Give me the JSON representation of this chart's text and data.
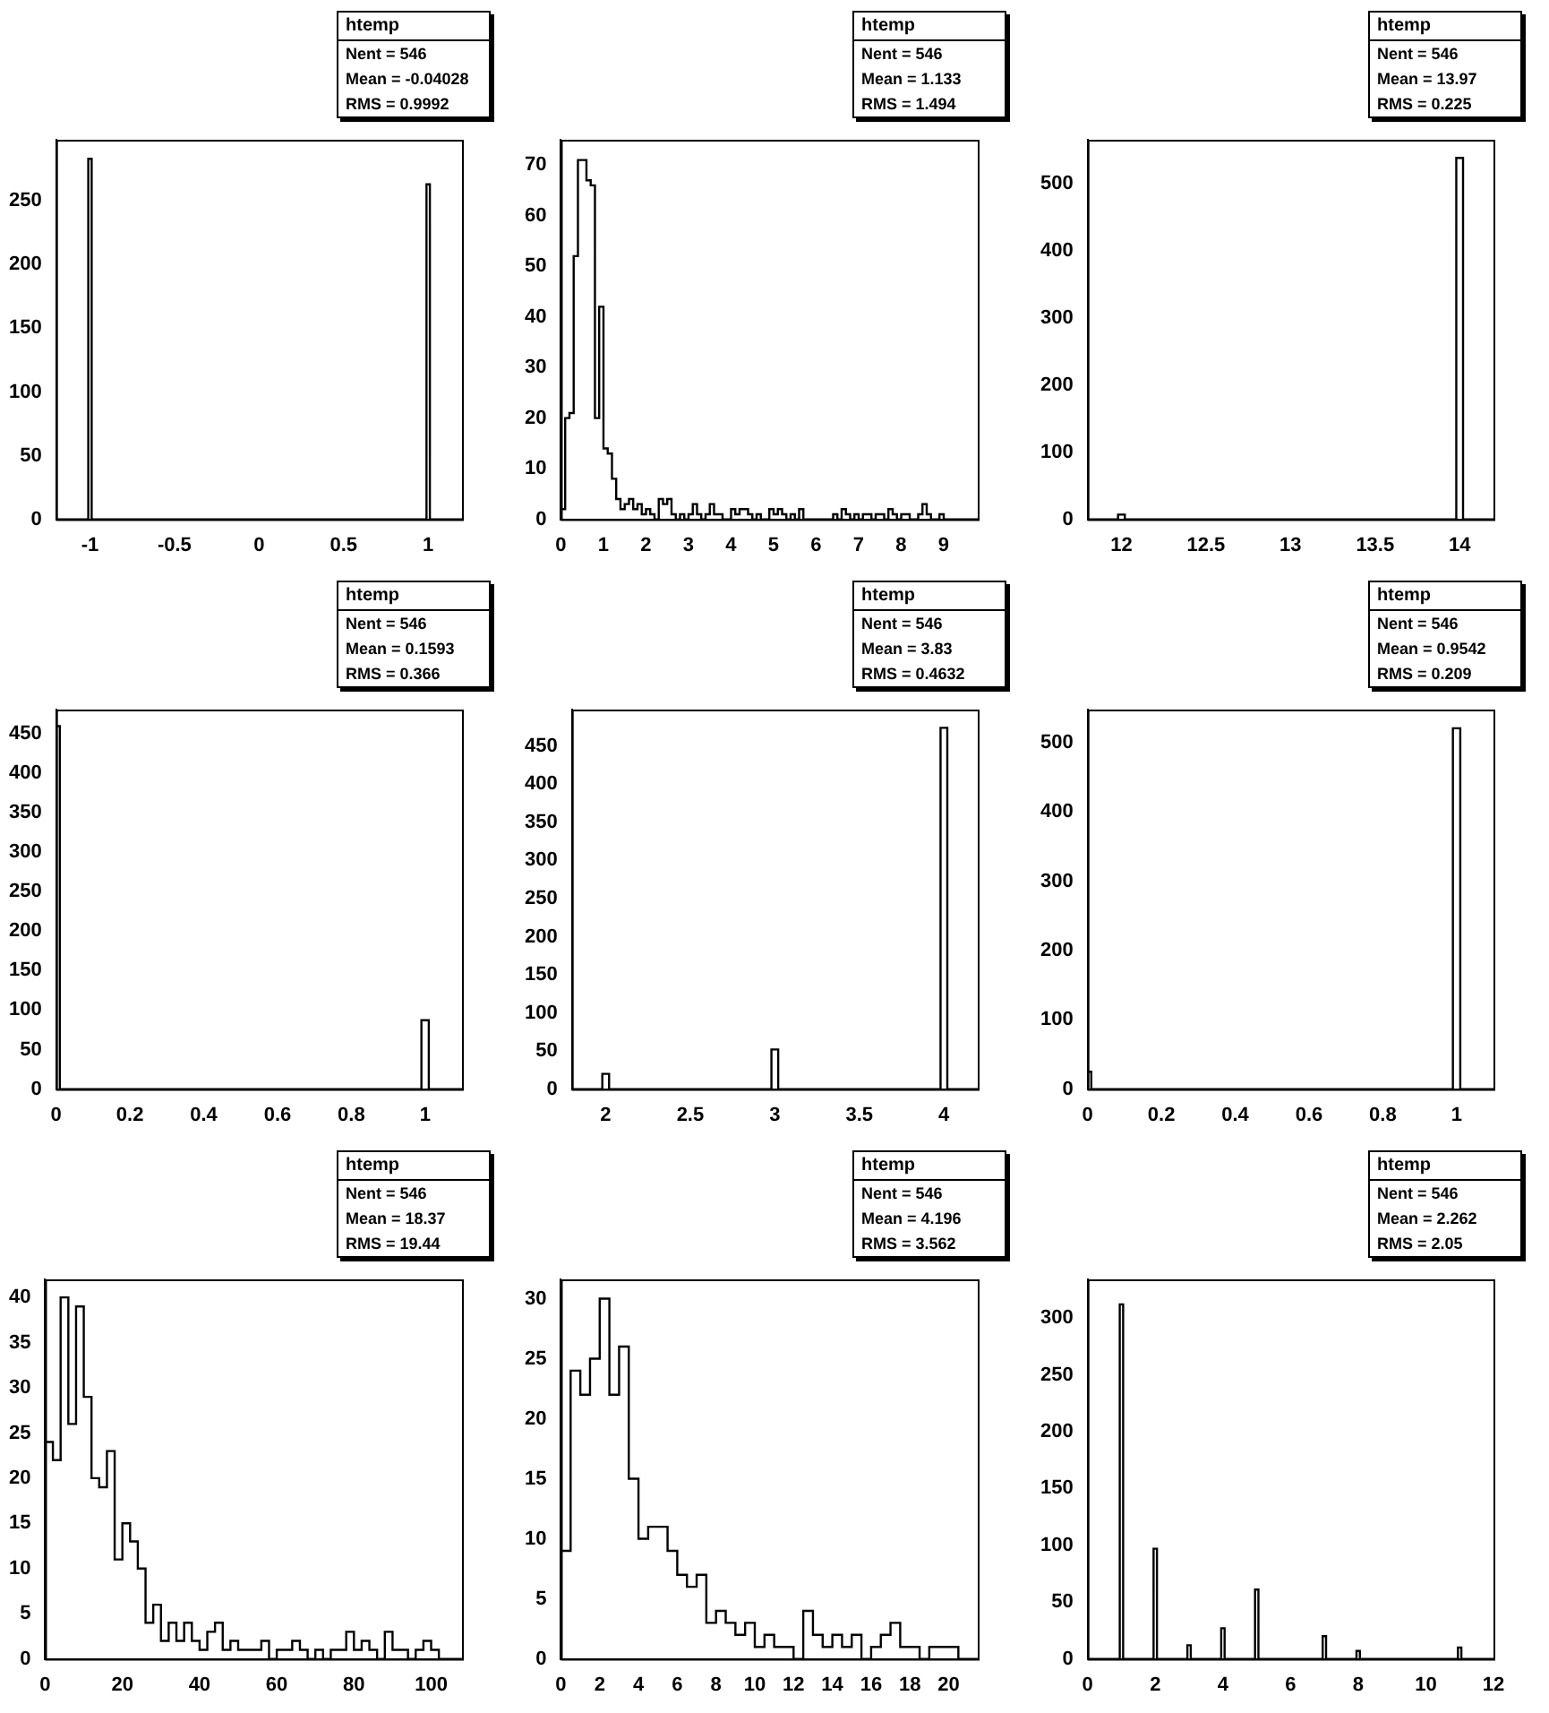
{
  "chart_data": [
    {
      "type": "histogram",
      "color": "#000000",
      "bins": [
        -1.2,
        -1.01,
        -0.99,
        0.99,
        1.01,
        1.2
      ],
      "values": [
        0,
        283,
        0,
        263,
        0
      ],
      "xlim": [
        -1.2,
        1.2
      ],
      "ylim": [
        0,
        298
      ],
      "xticks": [
        -1,
        -0.5,
        0,
        0.5,
        1
      ],
      "yticks": [
        0,
        50,
        100,
        150,
        200,
        250
      ],
      "annotations": [
        "htemp",
        "Nent = 546",
        "Mean = -0.04028",
        "RMS = 0.9992"
      ]
    },
    {
      "type": "histogram",
      "color": "#000000",
      "bins": [
        0,
        0.1,
        0.2,
        0.3,
        0.4,
        0.5,
        0.6,
        0.7,
        0.8,
        0.9,
        1,
        1.1,
        1.2,
        1.3,
        1.4,
        1.5,
        1.6,
        1.7,
        1.8,
        1.9,
        2,
        2.1,
        2.2,
        2.3,
        2.4,
        2.5,
        2.6,
        2.7,
        2.8,
        2.9,
        3,
        3.1,
        3.2,
        3.3,
        3.4,
        3.5,
        3.6,
        3.7,
        3.8,
        3.9,
        4,
        4.1,
        4.2,
        4.3,
        4.4,
        4.5,
        4.6,
        4.7,
        4.8,
        4.9,
        5,
        5.1,
        5.2,
        5.3,
        5.4,
        5.5,
        5.6,
        5.7,
        5.8,
        5.9,
        6,
        6.1,
        6.2,
        6.3,
        6.4,
        6.5,
        6.6,
        6.7,
        6.8,
        6.9,
        7,
        7.1,
        7.2,
        7.3,
        7.4,
        7.5,
        7.6,
        7.7,
        7.8,
        7.9,
        8,
        8.1,
        8.2,
        8.3,
        8.4,
        8.5,
        8.6,
        8.7,
        8.8,
        8.9,
        9,
        9.1,
        9.2,
        9.3,
        9.4,
        9.5,
        9.6,
        9.7,
        9.8
      ],
      "values": [
        2,
        20,
        21,
        52,
        71,
        71,
        67,
        66,
        20,
        42,
        14,
        13,
        8,
        4,
        2,
        3,
        4,
        2,
        3,
        1,
        2,
        1,
        0,
        4,
        3,
        4,
        1,
        0,
        1,
        0,
        1,
        3,
        1,
        0,
        1,
        3,
        1,
        1,
        0,
        0,
        2,
        1,
        2,
        2,
        1,
        0,
        1,
        0,
        0,
        2,
        1,
        2,
        1,
        0,
        1,
        0,
        2,
        0,
        0,
        0,
        0,
        0,
        0,
        0,
        1,
        0,
        2,
        1,
        0,
        1,
        0,
        1,
        1,
        0,
        1,
        1,
        0,
        2,
        1,
        0,
        1,
        1,
        0,
        0,
        1,
        3,
        1,
        0,
        0,
        1,
        0,
        0,
        0,
        0,
        0,
        0,
        0,
        0
      ],
      "xlim": [
        0,
        9.8
      ],
      "ylim": [
        0,
        75
      ],
      "xticks": [
        0,
        1,
        2,
        3,
        4,
        5,
        6,
        7,
        8,
        9
      ],
      "yticks": [
        0,
        10,
        20,
        30,
        40,
        50,
        60,
        70
      ],
      "annotations": [
        "htemp",
        "Nent = 546",
        "Mean = 1.133",
        "RMS = 1.494"
      ]
    },
    {
      "type": "histogram",
      "color": "#000000",
      "bins": [
        11.8,
        11.98,
        12.02,
        13.98,
        14.02,
        14.2
      ],
      "values": [
        0,
        7,
        0,
        539,
        0
      ],
      "xlim": [
        11.8,
        14.2
      ],
      "ylim": [
        0,
        566
      ],
      "xticks": [
        12,
        12.5,
        13,
        13.5,
        14
      ],
      "yticks": [
        0,
        100,
        200,
        300,
        400,
        500
      ],
      "annotations": [
        "htemp",
        "Nent = 546",
        "Mean = 13.97",
        "RMS = 0.225"
      ]
    },
    {
      "type": "histogram",
      "color": "#000000",
      "bins": [
        0,
        0.01,
        0.99,
        1.01,
        1.1
      ],
      "values": [
        459,
        0,
        87,
        0
      ],
      "xlim": [
        0,
        1.1
      ],
      "ylim": [
        0,
        480
      ],
      "xticks": [
        0,
        0.2,
        0.4,
        0.6,
        0.8,
        1
      ],
      "yticks": [
        0,
        50,
        100,
        150,
        200,
        250,
        300,
        350,
        400,
        450
      ],
      "annotations": [
        "htemp",
        "Nent = 546",
        "Mean = 0.1593",
        "RMS = 0.366"
      ]
    },
    {
      "type": "histogram",
      "color": "#000000",
      "bins": [
        1.8,
        1.98,
        2.02,
        2.98,
        3.02,
        3.98,
        4.02,
        4.2
      ],
      "values": [
        0,
        20,
        0,
        52,
        0,
        474,
        0
      ],
      "xlim": [
        1.8,
        4.2
      ],
      "ylim": [
        0,
        498
      ],
      "xticks": [
        2,
        2.5,
        3,
        3.5,
        4
      ],
      "yticks": [
        0,
        50,
        100,
        150,
        200,
        250,
        300,
        350,
        400,
        450
      ],
      "annotations": [
        "htemp",
        "Nent = 546",
        "Mean = 3.83",
        "RMS = 0.4632"
      ]
    },
    {
      "type": "histogram",
      "color": "#000000",
      "bins": [
        0,
        0.01,
        0.99,
        1.01,
        1.1
      ],
      "values": [
        25,
        0,
        521,
        0
      ],
      "xlim": [
        0,
        1.1
      ],
      "ylim": [
        0,
        548
      ],
      "xticks": [
        0,
        0.2,
        0.4,
        0.6,
        0.8,
        1
      ],
      "yticks": [
        0,
        100,
        200,
        300,
        400,
        500
      ],
      "annotations": [
        "htemp",
        "Nent = 546",
        "Mean = 0.9542",
        "RMS = 0.209"
      ]
    },
    {
      "type": "histogram",
      "color": "#000000",
      "bins": [
        0,
        2,
        4,
        6,
        8,
        10,
        12,
        14,
        16,
        18,
        20,
        22,
        24,
        26,
        28,
        30,
        32,
        34,
        36,
        38,
        40,
        42,
        44,
        46,
        48,
        50,
        52,
        54,
        56,
        58,
        60,
        62,
        64,
        66,
        68,
        70,
        72,
        74,
        76,
        78,
        80,
        82,
        84,
        86,
        88,
        90,
        92,
        94,
        96,
        98,
        100,
        102,
        104,
        106,
        108
      ],
      "values": [
        24,
        22,
        40,
        26,
        39,
        29,
        20,
        19,
        23,
        11,
        15,
        13,
        10,
        4,
        6,
        2,
        4,
        2,
        4,
        2,
        1,
        3,
        4,
        1,
        2,
        1,
        1,
        1,
        2,
        0,
        1,
        1,
        2,
        1,
        0,
        1,
        0,
        1,
        1,
        3,
        1,
        2,
        1,
        0,
        3,
        1,
        1,
        0,
        1,
        2,
        1,
        0,
        0,
        0
      ],
      "xlim": [
        0,
        108
      ],
      "ylim": [
        0,
        42
      ],
      "xticks": [
        0,
        20,
        40,
        60,
        80,
        100
      ],
      "yticks": [
        0,
        5,
        10,
        15,
        20,
        25,
        30,
        35,
        40
      ],
      "annotations": [
        "htemp",
        "Nent = 546",
        "Mean = 18.37",
        "RMS = 19.44"
      ]
    },
    {
      "type": "histogram",
      "color": "#000000",
      "bins": [
        0,
        0.5,
        1,
        1.5,
        2,
        2.5,
        3,
        3.5,
        4,
        4.5,
        5,
        5.5,
        6,
        6.5,
        7,
        7.5,
        8,
        8.5,
        9,
        9.5,
        10,
        10.5,
        11,
        11.5,
        12,
        12.5,
        13,
        13.5,
        14,
        14.5,
        15,
        15.5,
        16,
        16.5,
        17,
        17.5,
        18,
        18.5,
        19,
        19.5,
        20,
        20.5,
        21,
        21.5
      ],
      "values": [
        9,
        24,
        22,
        25,
        30,
        22,
        26,
        15,
        10,
        11,
        11,
        9,
        7,
        6,
        7,
        3,
        4,
        3,
        2,
        3,
        1,
        2,
        1,
        1,
        0,
        4,
        2,
        1,
        2,
        1,
        2,
        0,
        1,
        2,
        3,
        1,
        1,
        0,
        1,
        1,
        1,
        0,
        0
      ],
      "xlim": [
        0,
        21.5
      ],
      "ylim": [
        0,
        31.6
      ],
      "xticks": [
        0,
        2,
        4,
        6,
        8,
        10,
        12,
        14,
        16,
        18,
        20
      ],
      "yticks": [
        0,
        5,
        10,
        15,
        20,
        25,
        30
      ],
      "annotations": [
        "htemp",
        "Nent = 546",
        "Mean = 4.196",
        "RMS = 3.562"
      ]
    },
    {
      "type": "histogram",
      "color": "#000000",
      "bins": [
        0,
        0.95,
        1.05,
        1.95,
        2.05,
        2.95,
        3.05,
        3.95,
        4.05,
        4.95,
        5.05,
        6.95,
        7.05,
        7.95,
        8.05,
        10.95,
        11.05,
        12
      ],
      "values": [
        0,
        312,
        0,
        97,
        0,
        12,
        0,
        27,
        0,
        61,
        0,
        20,
        0,
        7,
        0,
        10,
        0
      ],
      "xlim": [
        0,
        12
      ],
      "ylim": [
        0,
        334
      ],
      "xticks": [
        0,
        2,
        4,
        6,
        8,
        10,
        12
      ],
      "yticks": [
        0,
        50,
        100,
        150,
        200,
        250,
        300
      ],
      "annotations": [
        "htemp",
        "Nent = 546",
        "Mean = 2.262",
        "RMS = 2.05"
      ]
    }
  ]
}
